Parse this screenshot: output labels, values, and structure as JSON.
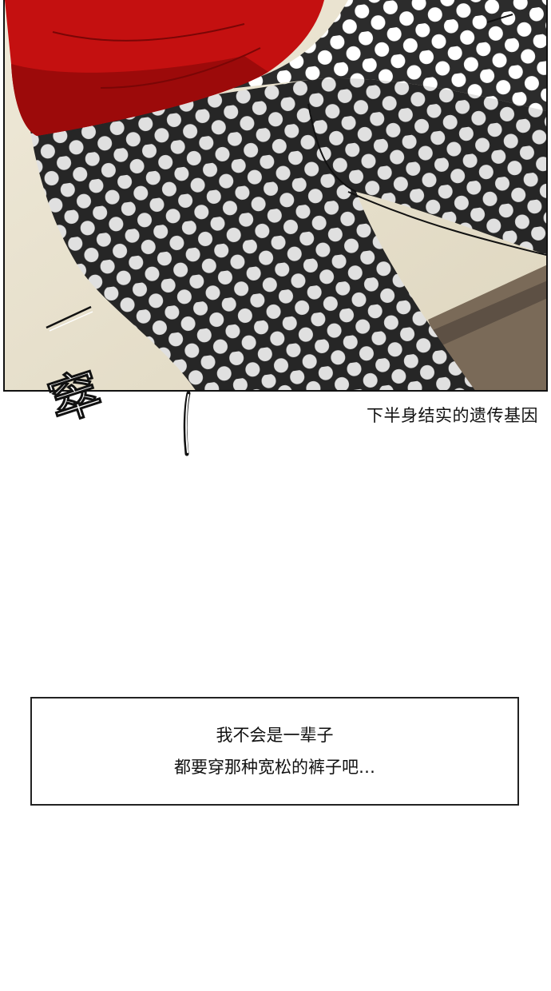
{
  "panel": {
    "sfx_text": "窣",
    "caption": "下半身结实的遗传基因"
  },
  "dialog": {
    "line1": "我不会是一辈子",
    "line2": "都要穿那种宽松的裤子吧…"
  },
  "colors": {
    "shirt": "#c41010",
    "pants": "#2c2c2c",
    "dots": "#ffffff",
    "background": "#e8e2cf"
  }
}
